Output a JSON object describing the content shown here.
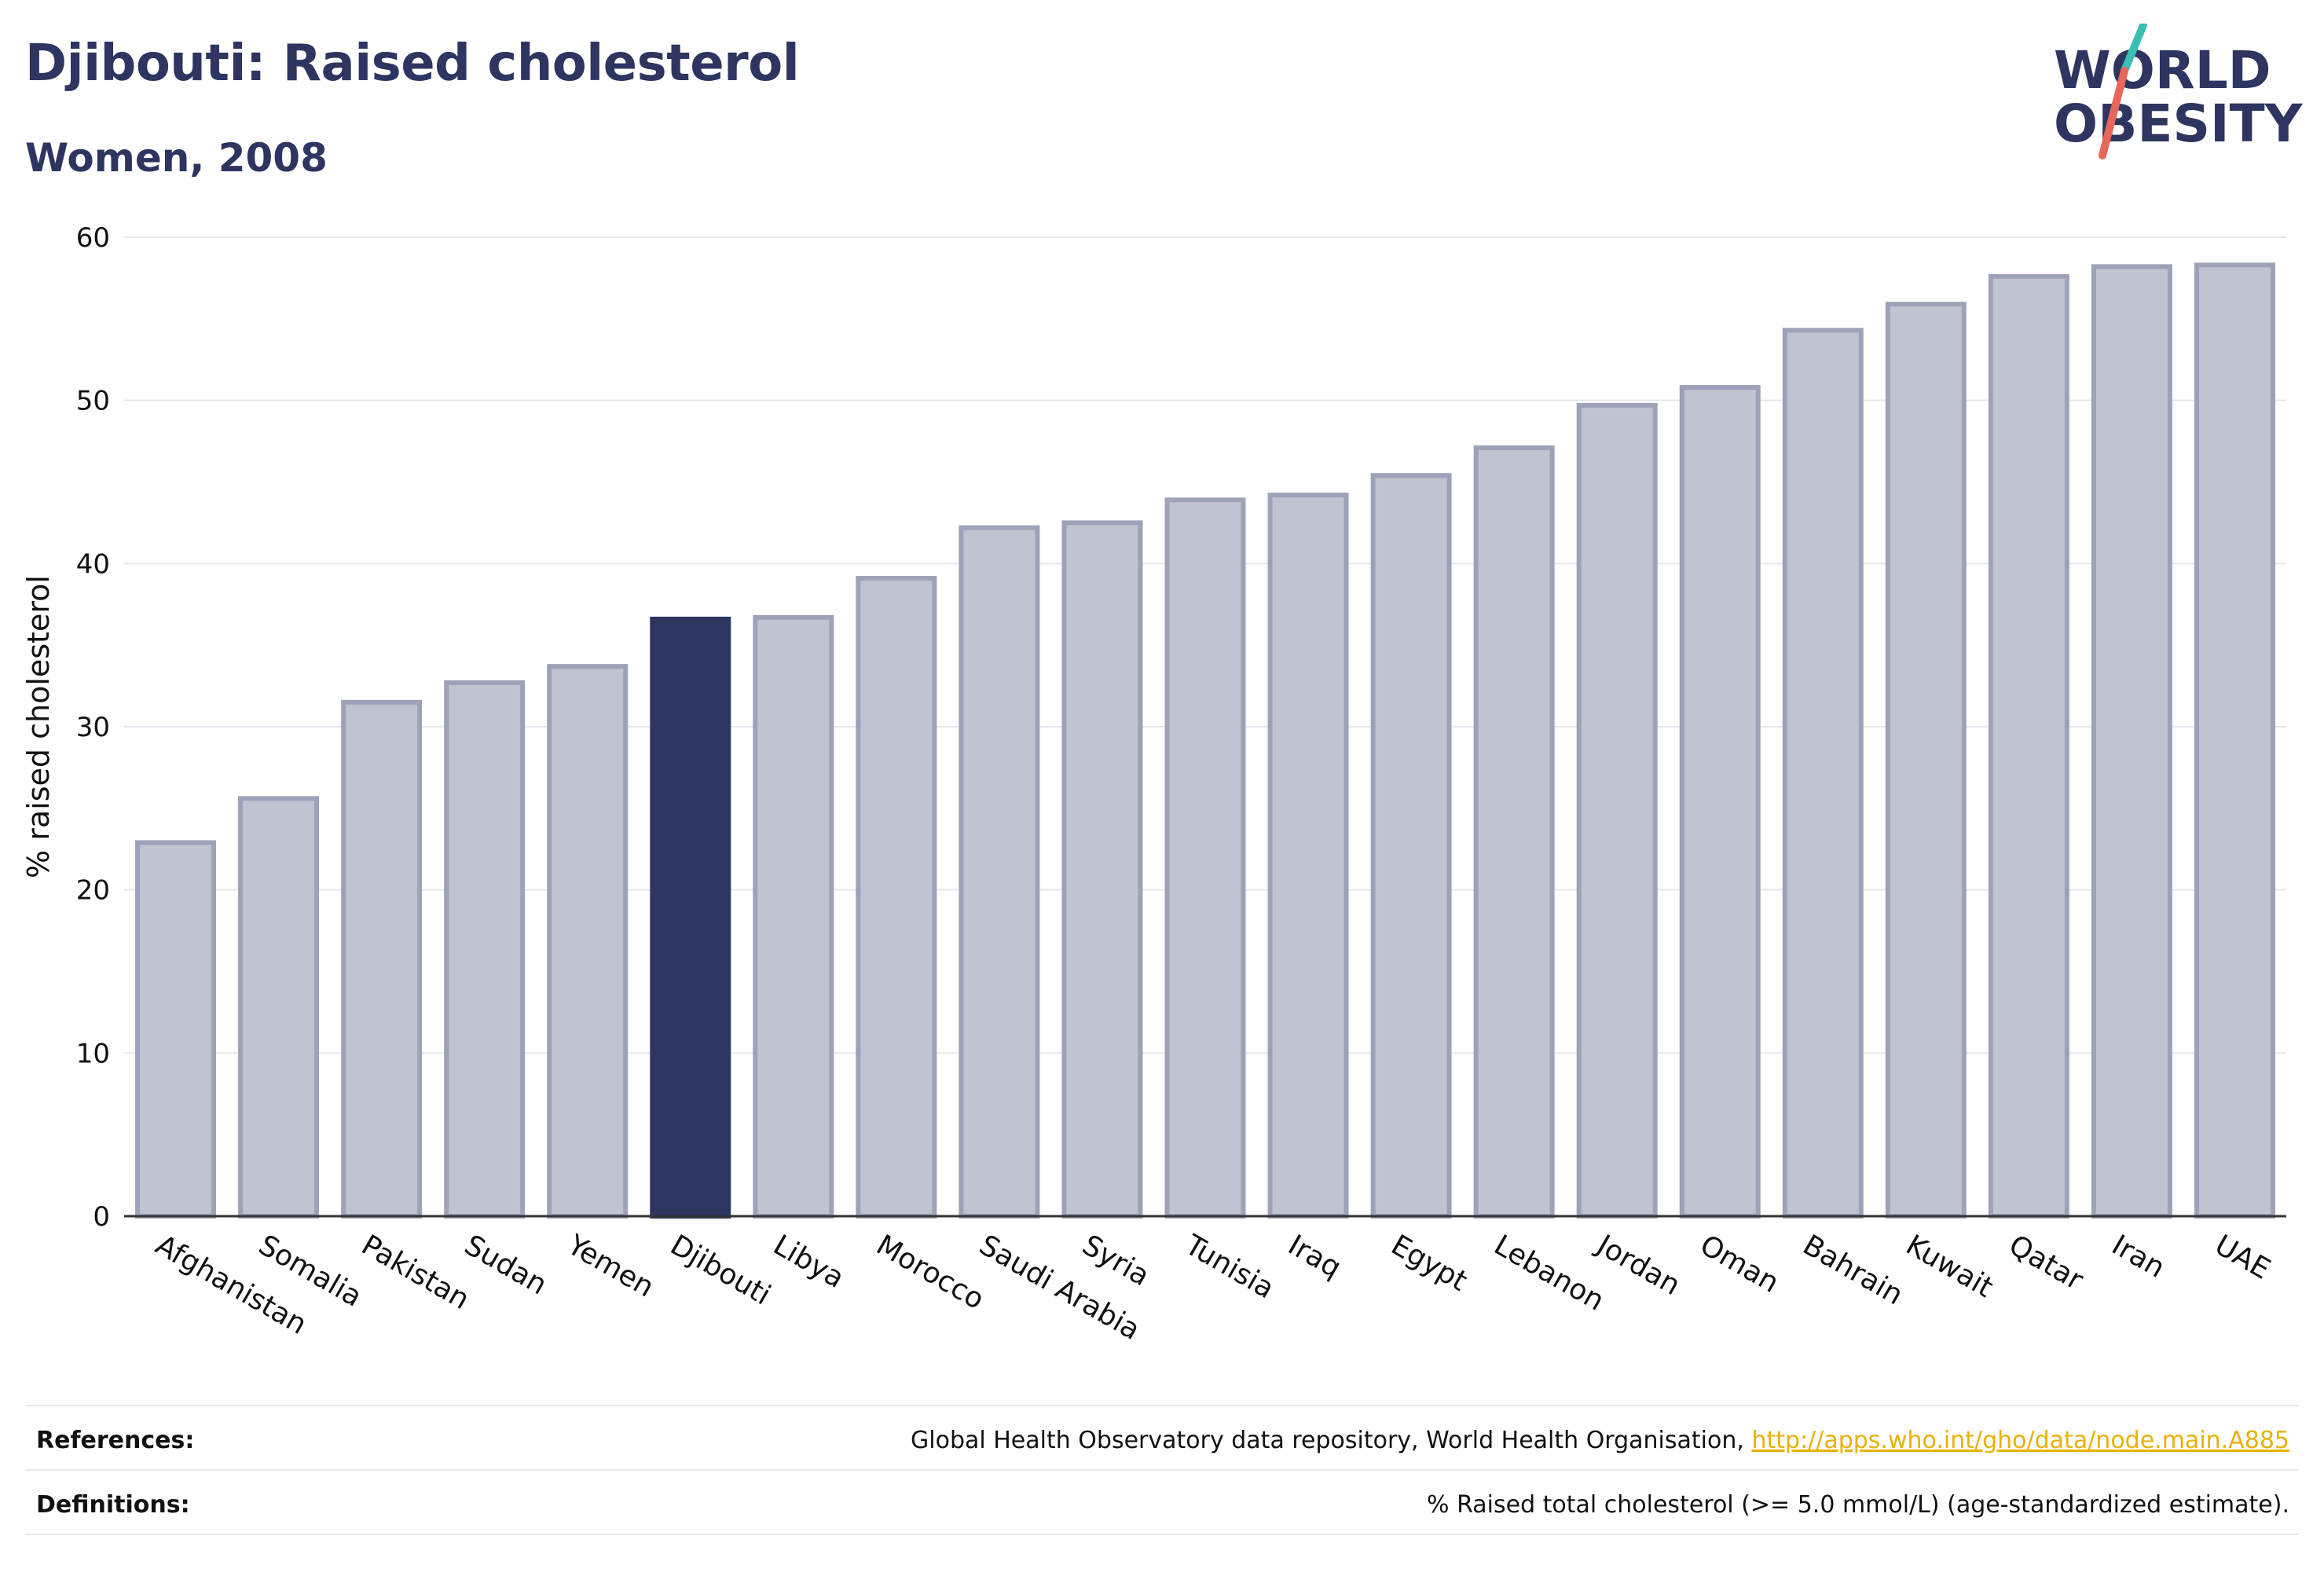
{
  "header": {
    "title": "Djibouti: Raised cholesterol",
    "subtitle": "Women, 2008"
  },
  "logo": {
    "line1": "WORLD",
    "line2": "OBESITY",
    "accent_colors": [
      "#3bbfb5",
      "#e8665a"
    ]
  },
  "chart_data": {
    "type": "bar",
    "ylabel": "% raised cholesterol",
    "ylim": [
      0,
      60
    ],
    "yticks": [
      0,
      10,
      20,
      30,
      40,
      50,
      60
    ],
    "grid": true,
    "highlight": "Djibouti",
    "colors": {
      "bar": "#c0c3d0",
      "bar_border": "#9da2b8",
      "highlight": "#2d3560"
    },
    "categories": [
      "Afghanistan",
      "Somalia",
      "Pakistan",
      "Sudan",
      "Yemen",
      "Djibouti",
      "Libya",
      "Morocco",
      "Saudi Arabia",
      "Syria",
      "Tunisia",
      "Iraq",
      "Egypt",
      "Lebanon",
      "Jordan",
      "Oman",
      "Bahrain",
      "Kuwait",
      "Qatar",
      "Iran",
      "UAE"
    ],
    "values": [
      22.9,
      25.6,
      31.5,
      32.7,
      33.7,
      36.6,
      36.7,
      39.1,
      42.2,
      42.5,
      43.9,
      44.2,
      45.4,
      47.1,
      49.7,
      50.8,
      54.3,
      55.9,
      57.6,
      58.2,
      58.3
    ]
  },
  "footer": {
    "references_label": "References:",
    "references_text": "Global Health Observatory data repository, World Health Organisation, ",
    "references_link": "http://apps.who.int/gho/data/node.main.A885",
    "definitions_label": "Definitions:",
    "definitions_text": "% Raised total cholesterol (>= 5.0 mmol/L) (age-standardized estimate)."
  }
}
